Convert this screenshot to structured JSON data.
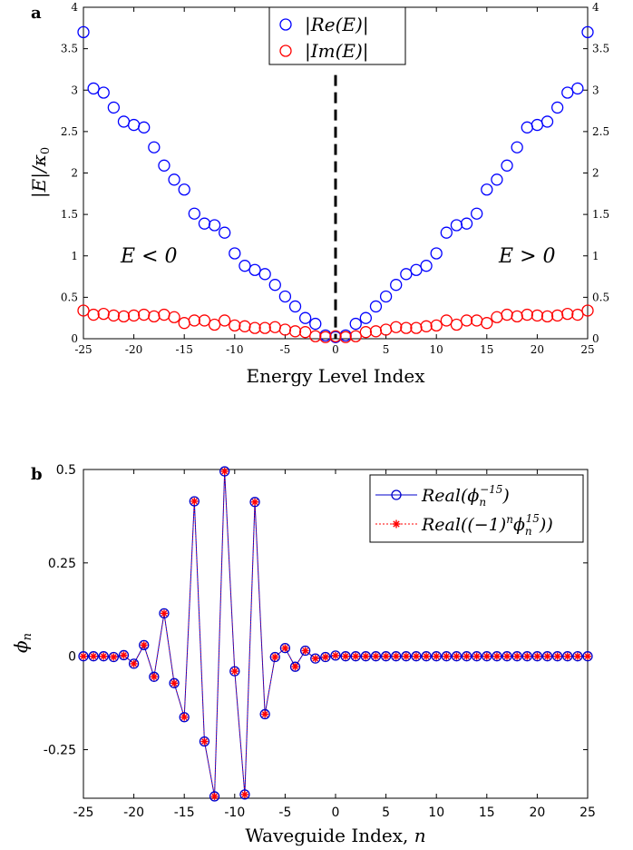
{
  "chart_data": [
    {
      "panel_label": "a",
      "type": "scatter",
      "xlabel": "Energy Level Index",
      "ylabel": "|E|/κ",
      "ylabel_sub": "0",
      "xlim": [
        -25,
        25
      ],
      "ylim": [
        0,
        4
      ],
      "xticks": [
        -25,
        -20,
        -15,
        -10,
        -5,
        0,
        5,
        10,
        15,
        20,
        25
      ],
      "yticks": [
        0,
        0.5,
        1,
        1.5,
        2,
        2.5,
        3,
        3.5,
        4
      ],
      "ytick_labels": [
        "0",
        "0.5",
        "1",
        "1.5",
        "2",
        "2.5",
        "3",
        "3.5",
        "4"
      ],
      "legend_position": "top-center",
      "annotations": [
        {
          "text": "E < 0",
          "x": -18.5,
          "y": 1.0
        },
        {
          "text": "E > 0",
          "x": 19.0,
          "y": 1.0
        }
      ],
      "dashed_line_x": 0,
      "x": [
        -25,
        -24,
        -23,
        -22,
        -21,
        -20,
        -19,
        -18,
        -17,
        -16,
        -15,
        -14,
        -13,
        -12,
        -11,
        -10,
        -9,
        -8,
        -7,
        -6,
        -5,
        -4,
        -3,
        -2,
        -1,
        0,
        1,
        2,
        3,
        4,
        5,
        6,
        7,
        8,
        9,
        10,
        11,
        12,
        13,
        14,
        15,
        16,
        17,
        18,
        19,
        20,
        21,
        22,
        23,
        24,
        25
      ],
      "series": [
        {
          "name": "|Re(E)|",
          "color": "#0000ff",
          "values": [
            3.7,
            3.02,
            2.97,
            2.79,
            2.62,
            2.58,
            2.55,
            2.31,
            2.09,
            1.92,
            1.8,
            1.51,
            1.39,
            1.37,
            1.28,
            1.03,
            0.88,
            0.83,
            0.78,
            0.65,
            0.51,
            0.39,
            0.25,
            0.18,
            0.04,
            0.02,
            0.04,
            0.18,
            0.25,
            0.39,
            0.51,
            0.65,
            0.78,
            0.83,
            0.88,
            1.03,
            1.28,
            1.37,
            1.39,
            1.51,
            1.8,
            1.92,
            2.09,
            2.31,
            2.55,
            2.58,
            2.62,
            2.79,
            2.97,
            3.02,
            3.7
          ]
        },
        {
          "name": "|Im(E)|",
          "color": "#ff0000",
          "values": [
            0.34,
            0.29,
            0.3,
            0.28,
            0.27,
            0.28,
            0.29,
            0.27,
            0.29,
            0.26,
            0.19,
            0.22,
            0.22,
            0.17,
            0.22,
            0.16,
            0.15,
            0.13,
            0.13,
            0.14,
            0.11,
            0.09,
            0.08,
            0.03,
            0.02,
            0.03,
            0.02,
            0.03,
            0.08,
            0.09,
            0.11,
            0.14,
            0.13,
            0.13,
            0.15,
            0.16,
            0.22,
            0.17,
            0.22,
            0.22,
            0.19,
            0.26,
            0.29,
            0.27,
            0.29,
            0.28,
            0.27,
            0.28,
            0.3,
            0.29,
            0.34
          ]
        }
      ]
    },
    {
      "panel_label": "b",
      "type": "line",
      "xlabel": "Waveguide Index, ",
      "xlabel_var": "n",
      "ylabel": "ϕ",
      "ylabel_sub": "n",
      "xlim": [
        -25,
        25
      ],
      "ylim": [
        -0.38,
        0.5
      ],
      "xticks": [
        -25,
        -20,
        -15,
        -10,
        -5,
        0,
        5,
        10,
        15,
        20,
        25
      ],
      "yticks": [
        -0.25,
        0,
        0.25,
        0.5
      ],
      "ytick_labels": [
        "-0.25",
        "0",
        "0.25",
        "0.5"
      ],
      "legend_position": "top-right",
      "x": [
        -25,
        -24,
        -23,
        -22,
        -21,
        -20,
        -19,
        -18,
        -17,
        -16,
        -15,
        -14,
        -13,
        -12,
        -11,
        -10,
        -9,
        -8,
        -7,
        -6,
        -5,
        -4,
        -3,
        -2,
        -1,
        0,
        1,
        2,
        3,
        4,
        5,
        6,
        7,
        8,
        9,
        10,
        11,
        12,
        13,
        14,
        15,
        16,
        17,
        18,
        19,
        20,
        21,
        22,
        23,
        24,
        25
      ],
      "series": [
        {
          "name": "Real(ϕ",
          "name_sub": "n",
          "name_sup": "−15",
          "name_tail": ")",
          "color": "#0000cc",
          "values": [
            0,
            0,
            0,
            -0.002,
            0.003,
            -0.02,
            0.03,
            -0.055,
            0.115,
            -0.072,
            -0.163,
            0.415,
            -0.228,
            -0.375,
            0.495,
            -0.04,
            -0.37,
            0.413,
            -0.155,
            -0.002,
            0.022,
            -0.028,
            0.015,
            -0.006,
            -0.002,
            0.002,
            0,
            0,
            0,
            0,
            0,
            0,
            0,
            0,
            0,
            0,
            0,
            0,
            0,
            0,
            0,
            0,
            0,
            0,
            0,
            0,
            0,
            0,
            0,
            0,
            0
          ]
        },
        {
          "name": "Real((−1)",
          "name_sup1": "n",
          "name_mid": "ϕ",
          "name_sub": "n",
          "name_sup": "15",
          "name_tail": "))",
          "color": "#ff0000",
          "values": [
            0,
            0,
            0,
            -0.002,
            0.003,
            -0.02,
            0.03,
            -0.055,
            0.115,
            -0.072,
            -0.163,
            0.415,
            -0.228,
            -0.375,
            0.495,
            -0.04,
            -0.37,
            0.413,
            -0.155,
            -0.002,
            0.022,
            -0.028,
            0.015,
            -0.006,
            -0.002,
            0.002,
            0,
            0,
            0,
            0,
            0,
            0,
            0,
            0,
            0,
            0,
            0,
            0,
            0,
            0,
            0,
            0,
            0,
            0,
            0,
            0,
            0,
            0,
            0,
            0,
            0
          ]
        }
      ]
    }
  ]
}
